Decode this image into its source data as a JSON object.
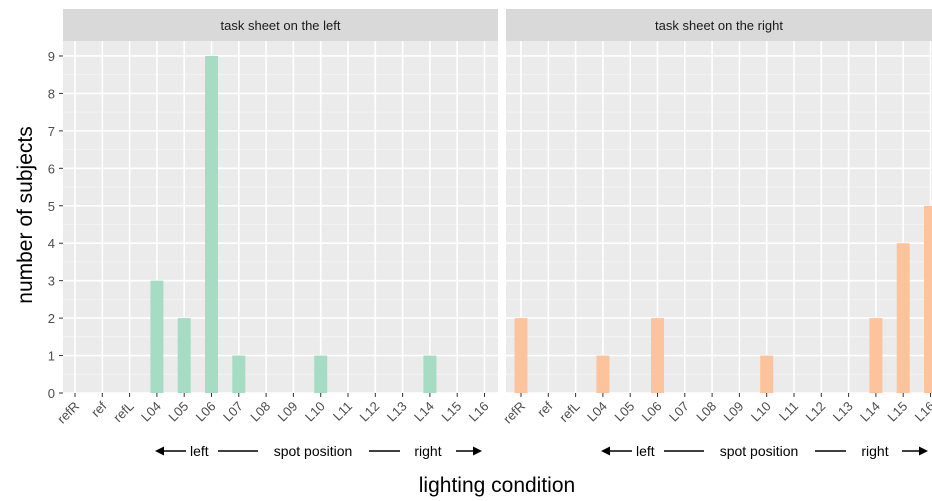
{
  "chart_data": {
    "type": "bar",
    "xlabel": "lighting condition",
    "ylabel": "number of subjects",
    "ylim": [
      0,
      9.4
    ],
    "yticks": [
      0,
      1,
      2,
      3,
      4,
      5,
      6,
      7,
      8,
      9
    ],
    "categories": [
      "refR",
      "ref",
      "refL",
      "L04",
      "L05",
      "L06",
      "L07",
      "L08",
      "L09",
      "L10",
      "L11",
      "L12",
      "L13",
      "L14",
      "L15",
      "L16"
    ],
    "grid": true,
    "panels": [
      {
        "label": "task sheet on the left",
        "color": "#a6dcc4",
        "values": [
          0,
          0,
          0,
          3,
          2,
          9,
          1,
          0,
          0,
          1,
          0,
          0,
          0,
          1,
          0,
          0
        ]
      },
      {
        "label": "task sheet on the right",
        "color": "#fdc39c",
        "values": [
          2,
          0,
          0,
          1,
          0,
          2,
          0,
          0,
          0,
          1,
          0,
          0,
          0,
          2,
          4,
          5
        ]
      }
    ],
    "annotation": {
      "left": "left",
      "middle": "spot position",
      "right": "right"
    }
  }
}
